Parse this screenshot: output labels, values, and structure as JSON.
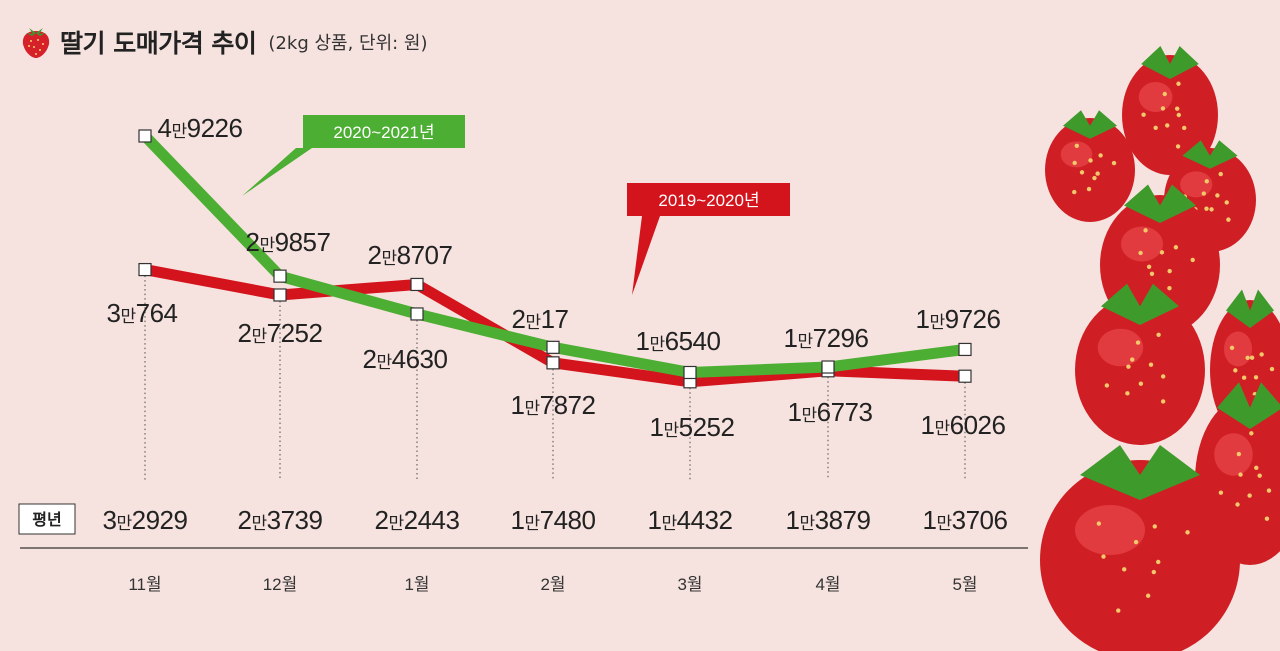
{
  "header": {
    "title": "딸기 도매가격 추이",
    "subtitle": "(2kg 상품, 단위: 원)"
  },
  "colors": {
    "background": "#f6e3df",
    "series_green": "#4cae32",
    "series_red": "#d4141c",
    "text": "#222222"
  },
  "chart_data": {
    "type": "line",
    "categories": [
      "11월",
      "12월",
      "1월",
      "2월",
      "3월",
      "4월",
      "5월"
    ],
    "series": [
      {
        "name": "2020~2021년",
        "color": "#4cae32",
        "values": [
          49226,
          29857,
          24630,
          20017,
          16540,
          17296,
          19726
        ],
        "labels": [
          "4만9226",
          "2만9857",
          "2만4630",
          "2만17",
          "1만6540",
          "1만7296",
          "1만9726"
        ]
      },
      {
        "name": "2019~2020년",
        "color": "#d4141c",
        "values": [
          30764,
          27252,
          28707,
          17872,
          15252,
          16773,
          16026
        ],
        "labels": [
          "3만764",
          "2만7252",
          "2만8707",
          "1만7872",
          "1만5252",
          "1만6773",
          "1만6026"
        ]
      }
    ],
    "average": {
      "label": "평년",
      "values": [
        32929,
        23739,
        22443,
        17480,
        14432,
        13879,
        13706
      ],
      "labels": [
        "3만2929",
        "2만3739",
        "2만2443",
        "1만7480",
        "1만4432",
        "1만3879",
        "1만3706"
      ]
    },
    "ylim": [
      10000,
      52000
    ],
    "grid": false,
    "legend": "callouts"
  },
  "icons": {
    "title_icon": "strawberry-icon",
    "decoration": "strawberries-photo"
  }
}
